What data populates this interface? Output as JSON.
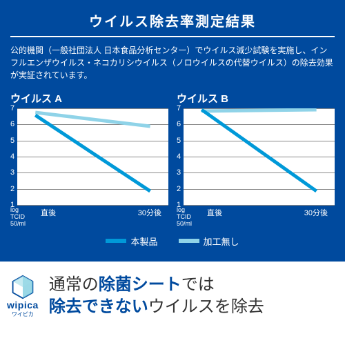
{
  "panel": {
    "background_color": "#004a9e",
    "title": "ウイルス除去率測定結果",
    "description": "公的機関（一般社団法人 日本食品分析センター）でウイルス減少試験を実施し、インフルエンザウイルス・ネコカリシウイルス（ノロウイルスの代替ウイルス）の除去効果が実証されています。"
  },
  "charts": {
    "ylim": [
      0,
      7
    ],
    "yticks": [
      7,
      6,
      5,
      4,
      3,
      2,
      1
    ],
    "y_unit_line1": "log TCID",
    "y_unit_line2": "50/ml",
    "x_labels": [
      "直後",
      "30分後"
    ],
    "grid_color": "#888888",
    "plot_bg": "#ffffff",
    "a": {
      "title": "ウイルス A",
      "series_product": {
        "x": [
          0,
          1
        ],
        "y": [
          6.5,
          1.0
        ],
        "color": "#0099d8",
        "width": 5
      },
      "series_none": {
        "x": [
          0,
          1
        ],
        "y": [
          6.7,
          5.7
        ],
        "color": "#8fd3e8",
        "width": 5
      }
    },
    "b": {
      "title": "ウイルス B",
      "series_product": {
        "x": [
          0,
          1
        ],
        "y": [
          6.9,
          1.0
        ],
        "color": "#0099d8",
        "width": 5
      },
      "series_none": {
        "x": [
          0,
          1
        ],
        "y": [
          6.8,
          6.9
        ],
        "color": "#8fd3e8",
        "width": 5
      }
    }
  },
  "legend": {
    "product": {
      "label": "本製品",
      "color": "#0099d8"
    },
    "none": {
      "label": "加工無し",
      "color": "#8fd3e8"
    }
  },
  "bottom": {
    "logo_name": "wipica",
    "logo_sub": "ワイピカ",
    "logo_color": "#004a9e",
    "logo_accent": "#6fc8dc",
    "tag_l1a": "通常の",
    "tag_l1b": "除菌シート",
    "tag_l1c": "では",
    "tag_l2a": "除去できない",
    "tag_l2b": "ウイルスを除去"
  }
}
